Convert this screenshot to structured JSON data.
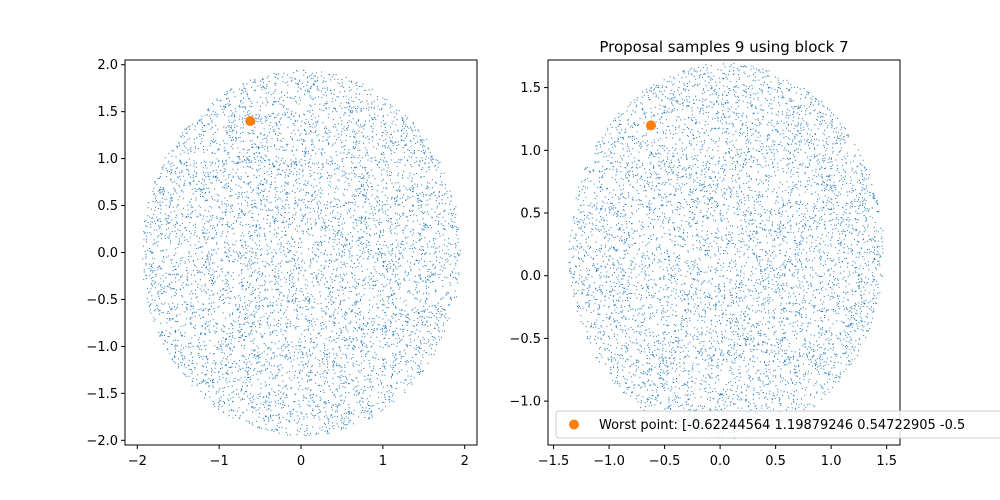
{
  "chart_data": [
    {
      "type": "scatter",
      "title": "",
      "xlabel": "",
      "ylabel": "",
      "xlim": [
        -2.15,
        2.15
      ],
      "ylim": [
        -2.05,
        2.05
      ],
      "xticks": [
        -2,
        -1,
        0,
        1,
        2
      ],
      "xtick_labels": [
        "−2",
        "−1",
        "0",
        "1",
        "2"
      ],
      "yticks": [
        -2.0,
        -1.5,
        -1.0,
        -0.5,
        0.0,
        0.5,
        1.0,
        1.5,
        2.0
      ],
      "ytick_labels": [
        "−2.0",
        "−1.5",
        "−1.0",
        "−0.5",
        "0.0",
        "0.5",
        "1.0",
        "1.5",
        "2.0"
      ],
      "series": [
        {
          "kind": "samples",
          "distribution": "uniform-disc",
          "count": 6500,
          "center": [
            0.0,
            0.0
          ],
          "radius": 1.95,
          "color": "#1f77b4"
        },
        {
          "kind": "highlight",
          "points": [
            [
              -0.62,
              1.4
            ]
          ],
          "color": "#ff7f0e"
        }
      ],
      "grid": false,
      "legend": null
    },
    {
      "type": "scatter",
      "title": "Proposal samples 9 using block 7",
      "xlabel": "",
      "ylabel": "",
      "xlim": [
        -1.55,
        1.62
      ],
      "ylim": [
        -1.35,
        1.72
      ],
      "xticks": [
        -1.5,
        -1.0,
        -0.5,
        0.0,
        0.5,
        1.0,
        1.5
      ],
      "xtick_labels": [
        "−1.5",
        "−1.0",
        "−0.5",
        "0.0",
        "0.5",
        "1.0",
        "1.5"
      ],
      "yticks": [
        -1.0,
        -0.5,
        0.0,
        0.5,
        1.0,
        1.5
      ],
      "ytick_labels": [
        "−1.0",
        "−0.5",
        "0.0",
        "0.5",
        "1.0",
        "1.5"
      ],
      "series": [
        {
          "kind": "samples",
          "distribution": "uniform-ellipse",
          "count": 6500,
          "center": [
            0.05,
            0.2
          ],
          "radius": [
            1.42,
            1.5
          ],
          "color": "#1f77b4"
        },
        {
          "name": "Worst point: [-0.62244564  1.19879246  0.54722905 -0.5",
          "kind": "highlight",
          "points": [
            [
              -0.62244564,
              1.19879246
            ]
          ],
          "color": "#ff7f0e"
        }
      ],
      "grid": false,
      "legend": {
        "placement": "lower-left",
        "text": "Worst point: [-0.62244564  1.19879246  0.54722905 -0.5"
      }
    }
  ]
}
